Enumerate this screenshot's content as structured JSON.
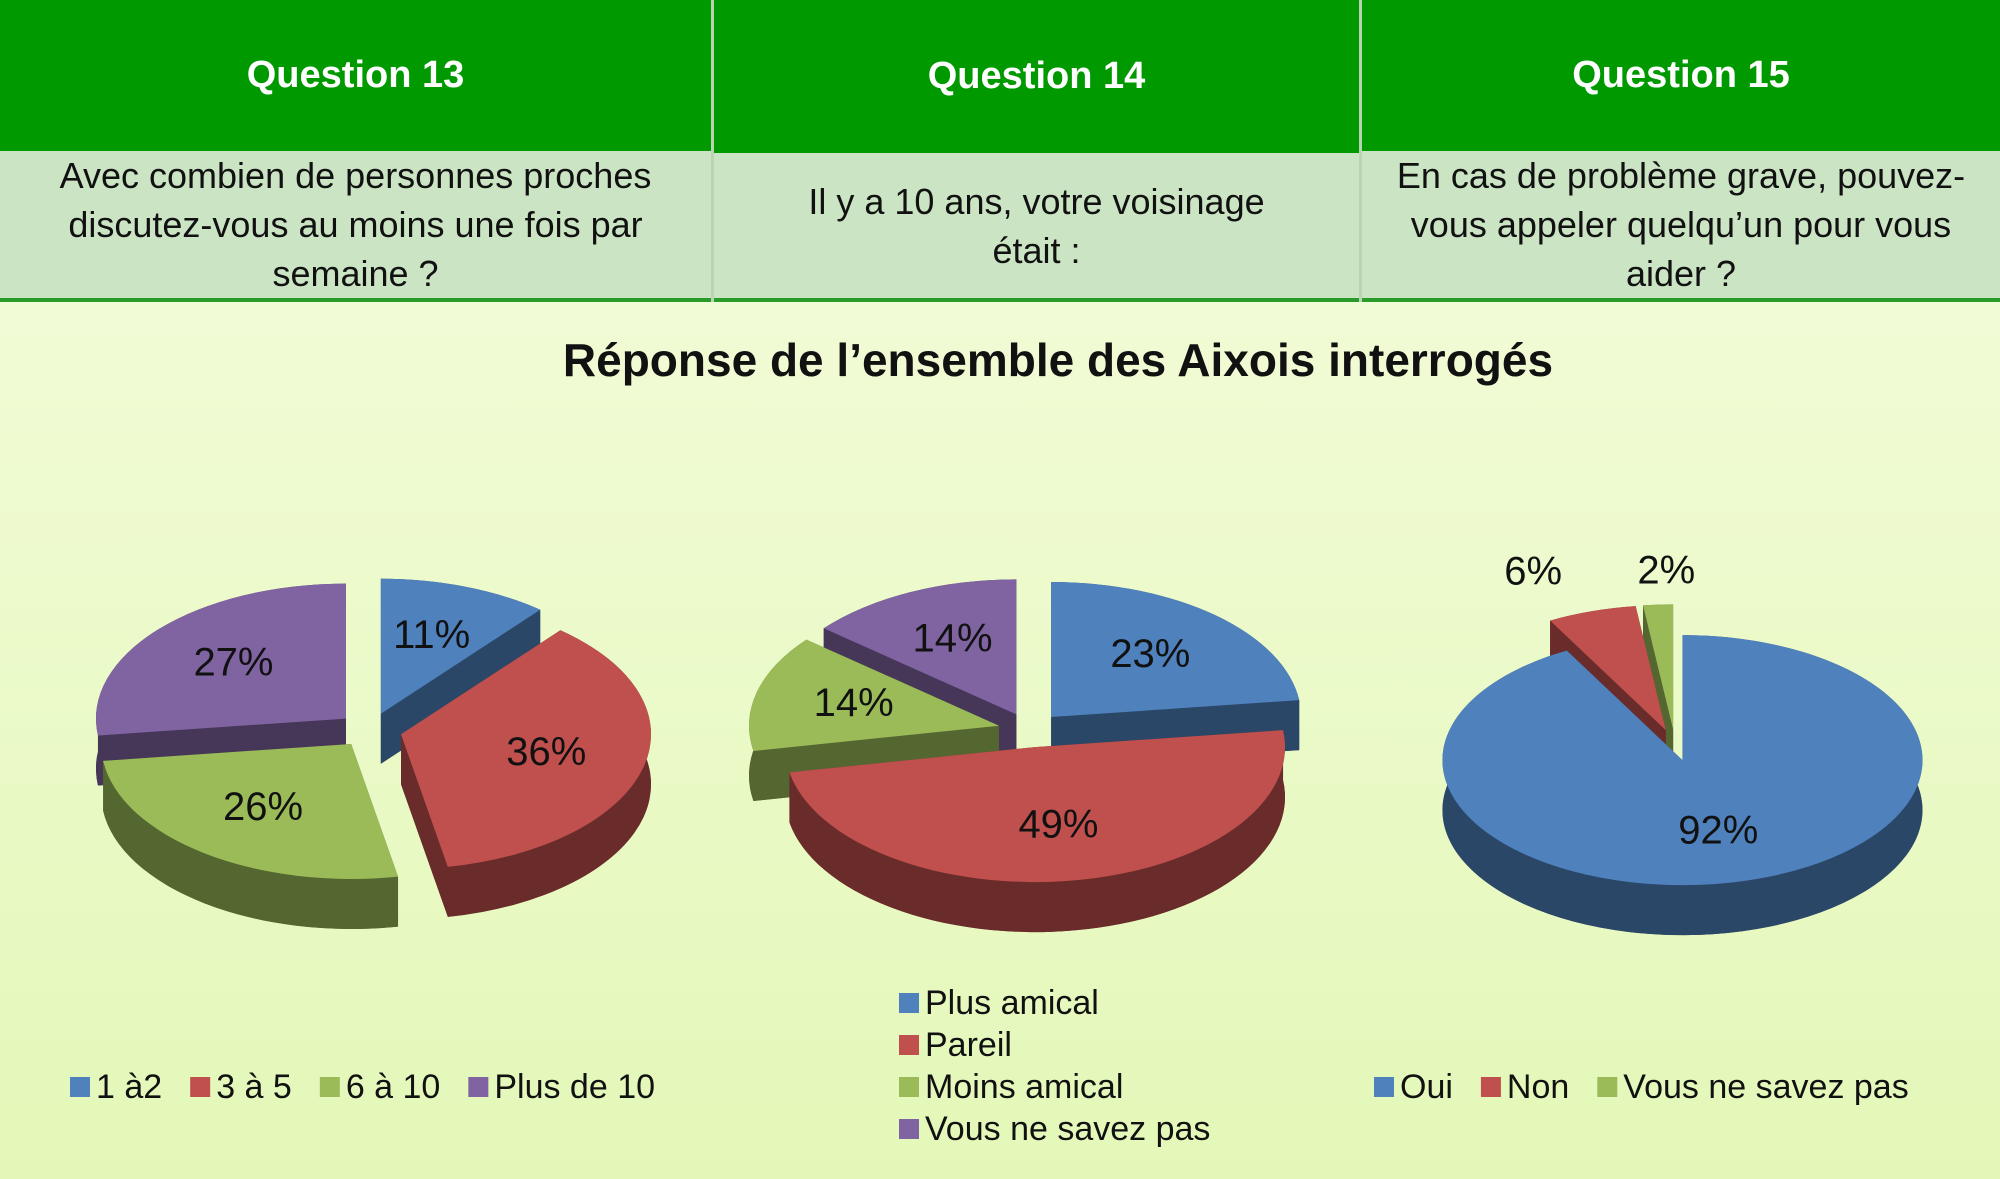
{
  "questions": [
    {
      "title": "Question 13",
      "text": "Avec combien de personnes proches discutez-vous au moins une fois par semaine ?"
    },
    {
      "title": "Question 14",
      "text": "Il y a 10 ans, votre voisinage était :"
    },
    {
      "title": "Question 15",
      "text": "En cas de problème grave, pouvez-vous appeler quelqu’un pour vous aider ?"
    }
  ],
  "heading": "Réponse de l’ensemble des Aixois interrogés",
  "chart_data": [
    {
      "type": "pie",
      "categories": [
        "1 à2",
        "3 à 5",
        "6 à 10",
        "Plus de 10"
      ],
      "values": [
        11,
        36,
        26,
        27
      ],
      "value_labels": [
        "11%",
        "36%",
        "26%",
        "27%"
      ],
      "colors": [
        "#4f81bd",
        "#c0504d",
        "#9bbb59",
        "#8064a2"
      ],
      "legend": "bottom",
      "legend_direction": "horizontal"
    },
    {
      "type": "pie",
      "categories": [
        "Plus amical",
        "Pareil",
        "Moins amical",
        "Vous ne savez pas"
      ],
      "values": [
        23,
        49,
        14,
        14
      ],
      "value_labels": [
        "23%",
        "49%",
        "14%",
        "14%"
      ],
      "colors": [
        "#4f81bd",
        "#c0504d",
        "#9bbb59",
        "#8064a2"
      ],
      "legend": "bottom",
      "legend_direction": "vertical"
    },
    {
      "type": "pie",
      "categories": [
        "Oui",
        "Non",
        "Vous ne savez pas"
      ],
      "values": [
        92,
        6,
        2
      ],
      "value_labels": [
        "92%",
        "6%",
        "2%"
      ],
      "colors": [
        "#4f81bd",
        "#c0504d",
        "#9bbb59"
      ],
      "legend": "bottom",
      "legend_direction": "horizontal"
    }
  ]
}
